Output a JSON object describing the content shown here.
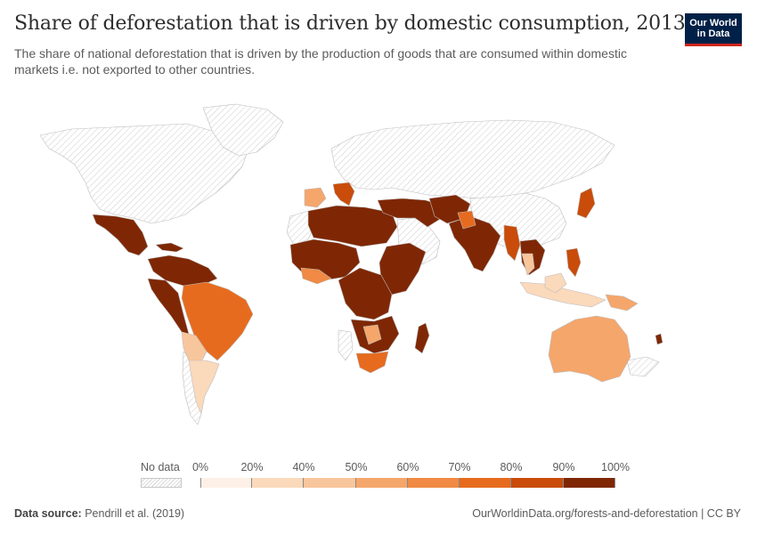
{
  "header": {
    "title": "Share of deforestation that is driven by domestic consumption, 2013",
    "subtitle": "The share of national deforestation that is driven by the production of goods that are consumed within domestic markets i.e. not exported to other countries."
  },
  "logo": {
    "line1": "Our World",
    "line2": "in Data",
    "bg_color": "#002147",
    "accent_color": "#ce261e"
  },
  "legend": {
    "nodata_label": "No data",
    "ticks": [
      "0%",
      "20%",
      "40%",
      "50%",
      "60%",
      "70%",
      "80%",
      "90%",
      "100%"
    ],
    "colors": [
      "#fdf0e6",
      "#fbd9bb",
      "#f8c69c",
      "#f5a66b",
      "#f08a44",
      "#e66b1f",
      "#c94c0a",
      "#7f2704"
    ]
  },
  "footer": {
    "source_label": "Data source:",
    "source_value": "Pendrill et al. (2019)",
    "credit": "OurWorldinData.org/forests-and-deforestation | CC BY"
  }
}
